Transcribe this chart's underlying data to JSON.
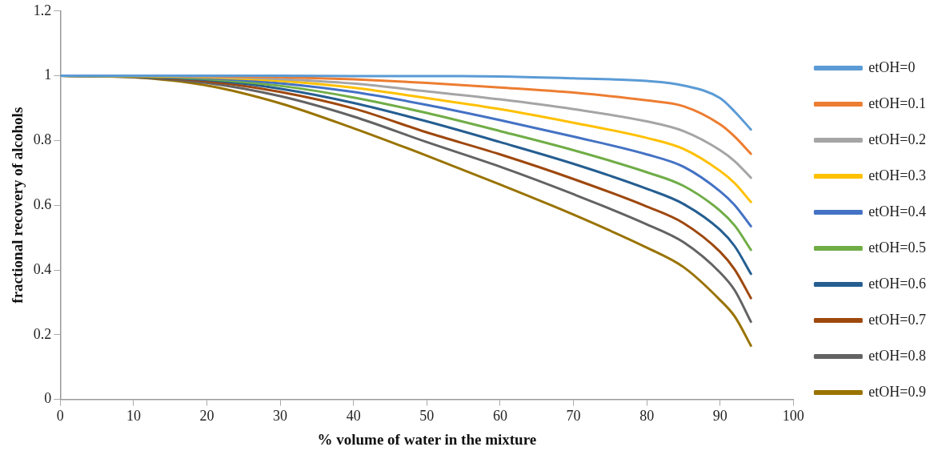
{
  "chart_data": {
    "type": "line",
    "xlabel": "% volume of water in the mixture",
    "ylabel": "fractional recovery of alcohols",
    "x": [
      0,
      10,
      20,
      30,
      40,
      50,
      60,
      70,
      80,
      85,
      90,
      92,
      94.2
    ],
    "xlim": [
      0,
      100
    ],
    "xticks": [
      0,
      10,
      20,
      30,
      40,
      50,
      60,
      70,
      80,
      90,
      100
    ],
    "ylim": [
      0,
      1.2
    ],
    "yticks": [
      0,
      0.2,
      0.4,
      0.6,
      0.8,
      1,
      1.2
    ],
    "grid": false,
    "legend": "right",
    "marker": "none",
    "line_style": "solid",
    "series": [
      {
        "name": "etOH=0",
        "color": "#5b9bd5",
        "values": [
          1,
          1,
          1,
          1,
          0.999,
          0.999,
          0.998,
          0.992,
          0.984,
          0.97,
          0.931,
          0.889,
          0.834
        ]
      },
      {
        "name": "etOH=0.1",
        "color": "#ed7d31",
        "values": [
          1,
          1,
          0.999,
          0.996,
          0.989,
          0.978,
          0.964,
          0.948,
          0.924,
          0.906,
          0.85,
          0.812,
          0.759
        ]
      },
      {
        "name": "etOH=0.2",
        "color": "#a5a5a5",
        "values": [
          1,
          1,
          0.997,
          0.99,
          0.976,
          0.952,
          0.927,
          0.897,
          0.859,
          0.829,
          0.77,
          0.736,
          0.685
        ]
      },
      {
        "name": "etOH=0.3",
        "color": "#ffc000",
        "values": [
          1,
          0.999,
          0.995,
          0.984,
          0.963,
          0.931,
          0.897,
          0.855,
          0.808,
          0.774,
          0.706,
          0.668,
          0.61
        ]
      },
      {
        "name": "etOH=0.4",
        "color": "#4472c4",
        "values": [
          1,
          0.999,
          0.993,
          0.977,
          0.95,
          0.91,
          0.863,
          0.812,
          0.757,
          0.719,
          0.643,
          0.6,
          0.535
        ]
      },
      {
        "name": "etOH=0.5",
        "color": "#70ad47",
        "values": [
          1,
          0.998,
          0.99,
          0.969,
          0.933,
          0.885,
          0.829,
          0.77,
          0.702,
          0.66,
          0.583,
          0.537,
          0.462
        ]
      },
      {
        "name": "etOH=0.6",
        "color": "#255e91",
        "values": [
          1,
          0.998,
          0.987,
          0.96,
          0.916,
          0.859,
          0.795,
          0.728,
          0.651,
          0.604,
          0.524,
          0.473,
          0.388
        ]
      },
      {
        "name": "etOH=0.7",
        "color": "#9e480e",
        "values": [
          1,
          0.997,
          0.983,
          0.95,
          0.899,
          0.825,
          0.757,
          0.681,
          0.596,
          0.545,
          0.456,
          0.401,
          0.313
        ]
      },
      {
        "name": "etOH=0.8",
        "color": "#636363",
        "values": [
          1,
          0.996,
          0.978,
          0.937,
          0.874,
          0.795,
          0.719,
          0.634,
          0.541,
          0.486,
          0.392,
          0.337,
          0.24
        ]
      },
      {
        "name": "etOH=0.9",
        "color": "#997300",
        "values": [
          1,
          0.995,
          0.97,
          0.915,
          0.838,
          0.753,
          0.664,
          0.571,
          0.469,
          0.409,
          0.307,
          0.256,
          0.166
        ]
      }
    ]
  }
}
